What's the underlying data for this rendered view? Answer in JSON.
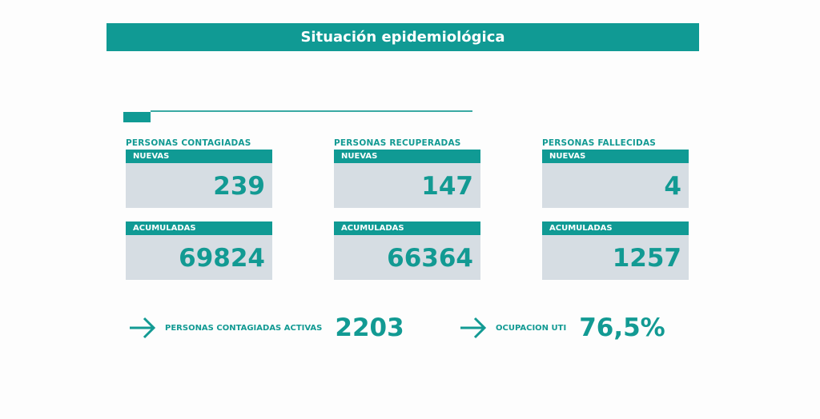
{
  "title": "Situación epidemiológica",
  "colors": {
    "accent": "#109a94",
    "box": "#d6dde3"
  },
  "columns": [
    {
      "category": "PERSONAS CONTAGIADAS",
      "new_label": "NUEVAS",
      "new_value": "239",
      "acc_label": "ACUMULADAS",
      "acc_value": "69824"
    },
    {
      "category": "PERSONAS RECUPERADAS",
      "new_label": "NUEVAS",
      "new_value": "147",
      "acc_label": "ACUMULADAS",
      "acc_value": "66364"
    },
    {
      "category": "PERSONAS FALLECIDAS",
      "new_label": "NUEVAS",
      "new_value": "4",
      "acc_label": "ACUMULADAS",
      "acc_value": "1257"
    }
  ],
  "summary": [
    {
      "label": "PERSONAS CONTAGIADAS ACTIVAS",
      "value": "2203",
      "icon": "arrow-right-icon"
    },
    {
      "label": "OCUPACION UTI",
      "value": "76,5%",
      "icon": "arrow-right-icon"
    }
  ]
}
